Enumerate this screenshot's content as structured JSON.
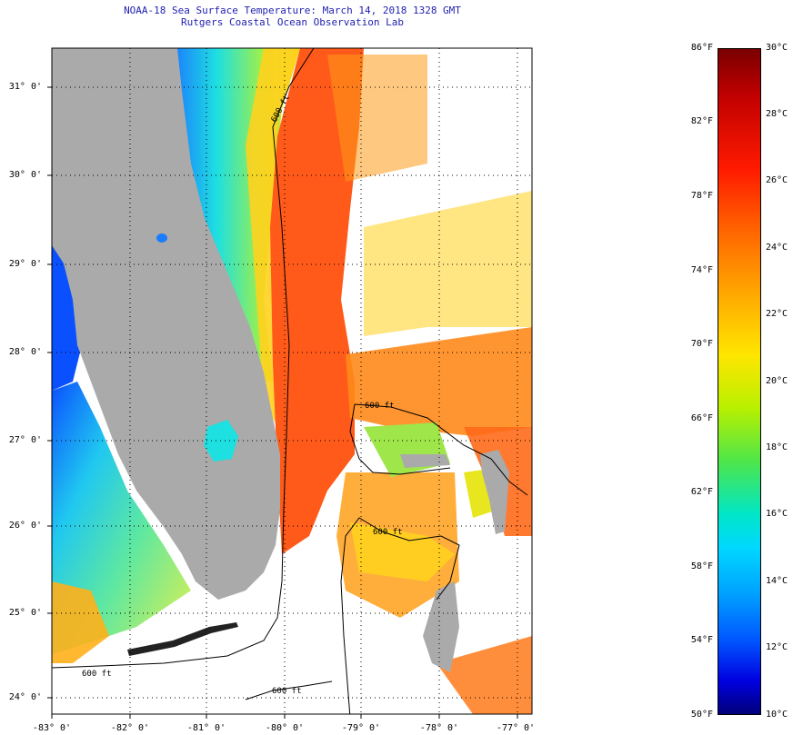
{
  "title": {
    "line1": "NOAA-18 Sea Surface Temperature:  March 14, 2018 1328 GMT",
    "line2": "Rutgers Coastal Ocean Observation Lab"
  },
  "axes": {
    "latitude_labels": [
      "31° 0'",
      "30° 0'",
      "29° 0'",
      "28° 0'",
      "27° 0'",
      "26° 0'",
      "25° 0'",
      "24° 0'"
    ],
    "longitude_labels": [
      "-83° 0'",
      "-82° 0'",
      "-81° 0'",
      "-80° 0'",
      "-79° 0'",
      "-78° 0'",
      "-77° 0'"
    ]
  },
  "contours": {
    "label": "600 ft"
  },
  "colorbar": {
    "fahrenheit_labels": [
      "86°F",
      "82°F",
      "78°F",
      "74°F",
      "70°F",
      "66°F",
      "62°F",
      "58°F",
      "54°F",
      "50°F"
    ],
    "celsius_labels": [
      "30°C",
      "28°C",
      "26°C",
      "24°C",
      "22°C",
      "20°C",
      "18°C",
      "16°C",
      "14°C",
      "12°C",
      "10°C"
    ]
  },
  "colors": {
    "land": "#aaaaaa",
    "title_text": "#1f1fb0",
    "warm": "#ff5a1a",
    "cool": "#1ee0e0"
  }
}
